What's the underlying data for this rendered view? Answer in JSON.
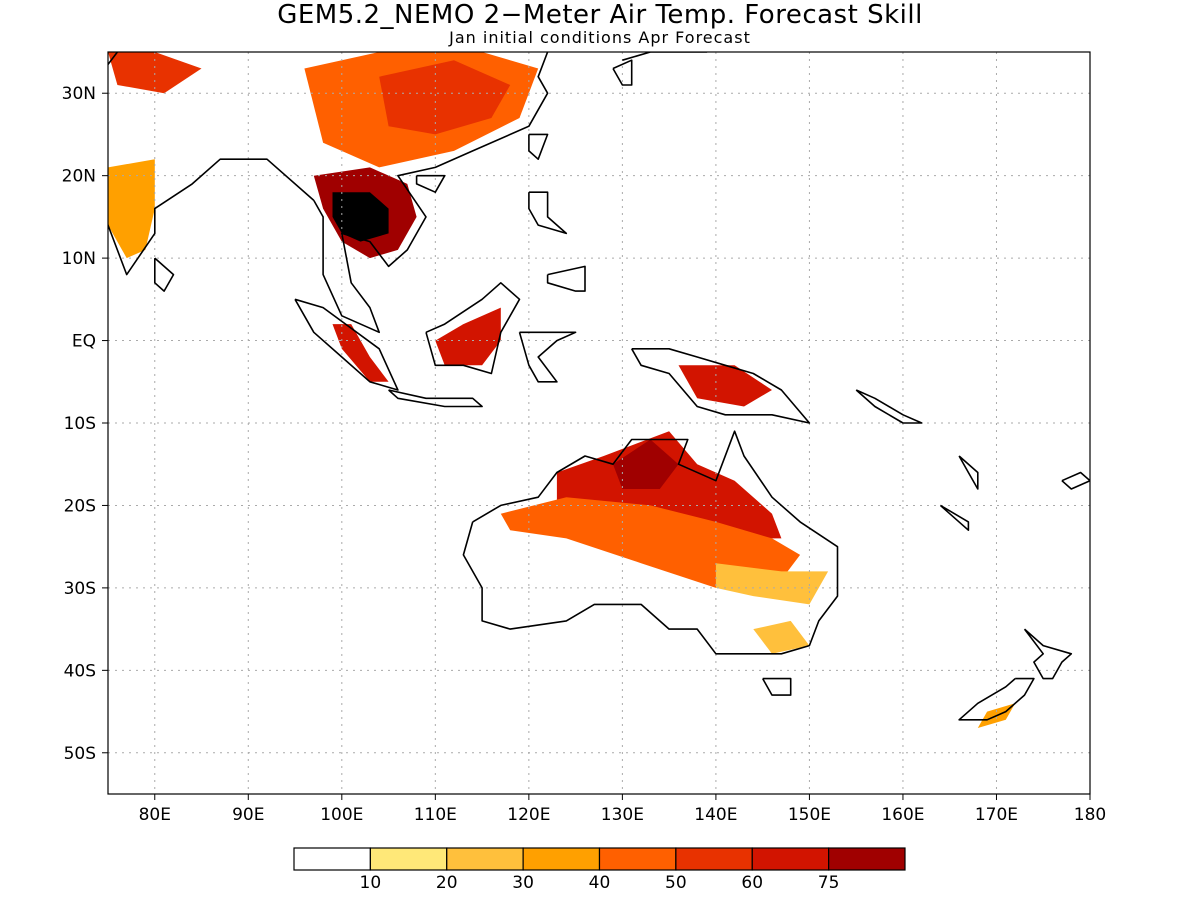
{
  "title": "GEM5.2_NEMO 2−Meter Air Temp. Forecast Skill",
  "subtitle": "Jan initial conditions  Apr Forecast",
  "map": {
    "lon_range": [
      75,
      180
    ],
    "lat_range": [
      -55,
      35
    ],
    "lon_ticks": [
      {
        "value": 80,
        "label": "80E"
      },
      {
        "value": 90,
        "label": "90E"
      },
      {
        "value": 100,
        "label": "100E"
      },
      {
        "value": 110,
        "label": "110E"
      },
      {
        "value": 120,
        "label": "120E"
      },
      {
        "value": 130,
        "label": "130E"
      },
      {
        "value": 140,
        "label": "140E"
      },
      {
        "value": 150,
        "label": "150E"
      },
      {
        "value": 160,
        "label": "160E"
      },
      {
        "value": 170,
        "label": "170E"
      },
      {
        "value": 180,
        "label": "180"
      }
    ],
    "lat_ticks": [
      {
        "value": 30,
        "label": "30N"
      },
      {
        "value": 20,
        "label": "20N"
      },
      {
        "value": 10,
        "label": "10N"
      },
      {
        "value": 0,
        "label": "EQ"
      },
      {
        "value": -10,
        "label": "10S"
      },
      {
        "value": -20,
        "label": "20S"
      },
      {
        "value": -30,
        "label": "30S"
      },
      {
        "value": -40,
        "label": "40S"
      },
      {
        "value": -50,
        "label": "50S"
      }
    ],
    "gridlines": true
  },
  "legend": {
    "colors": [
      "#ffffff",
      "#ffe878",
      "#ffc03c",
      "#ffa000",
      "#ff6000",
      "#e83200",
      "#d21400",
      "#a00000"
    ],
    "labels": [
      "10",
      "20",
      "30",
      "40",
      "50",
      "60",
      "75"
    ]
  },
  "skill_regions": [
    {
      "region": "Indochina",
      "level": 7,
      "polygon": [
        [
          97,
          20
        ],
        [
          103,
          21
        ],
        [
          107,
          19
        ],
        [
          108,
          15
        ],
        [
          106,
          11
        ],
        [
          103,
          10
        ],
        [
          100,
          12
        ],
        [
          98,
          16
        ]
      ]
    },
    {
      "region": "Indochina core",
      "level": 8,
      "polygon": [
        [
          99,
          18
        ],
        [
          103,
          18
        ],
        [
          105,
          16
        ],
        [
          105,
          13
        ],
        [
          102,
          12
        ],
        [
          100,
          13
        ],
        [
          99,
          15
        ]
      ]
    },
    {
      "region": "South China",
      "level": 4,
      "polygon": [
        [
          96,
          33
        ],
        [
          104,
          35
        ],
        [
          115,
          35
        ],
        [
          121,
          33
        ],
        [
          119,
          27
        ],
        [
          112,
          23
        ],
        [
          104,
          21
        ],
        [
          98,
          24
        ]
      ]
    },
    {
      "region": "South China inner",
      "level": 5,
      "polygon": [
        [
          104,
          32
        ],
        [
          112,
          34
        ],
        [
          118,
          31
        ],
        [
          116,
          27
        ],
        [
          110,
          25
        ],
        [
          105,
          26
        ]
      ]
    },
    {
      "region": "Northeast India",
      "level": 5,
      "polygon": [
        [
          75,
          35
        ],
        [
          80,
          35
        ],
        [
          85,
          33
        ],
        [
          81,
          30
        ],
        [
          76,
          31
        ]
      ]
    },
    {
      "region": "Central India",
      "level": 3,
      "polygon": [
        [
          75,
          21
        ],
        [
          80,
          22
        ],
        [
          80,
          16
        ],
        [
          79,
          11
        ],
        [
          77,
          10
        ],
        [
          75,
          14
        ]
      ]
    },
    {
      "region": "Sumatra",
      "level": 6,
      "polygon": [
        [
          99,
          2
        ],
        [
          101,
          2
        ],
        [
          103,
          -2
        ],
        [
          105,
          -5
        ],
        [
          103,
          -5
        ],
        [
          100,
          -1
        ]
      ]
    },
    {
      "region": "Borneo",
      "level": 6,
      "polygon": [
        [
          110,
          0
        ],
        [
          113,
          2
        ],
        [
          117,
          4
        ],
        [
          117,
          0
        ],
        [
          115,
          -3
        ],
        [
          111,
          -3
        ]
      ]
    },
    {
      "region": "New Guinea",
      "level": 6,
      "polygon": [
        [
          136,
          -3
        ],
        [
          142,
          -3
        ],
        [
          146,
          -6
        ],
        [
          143,
          -8
        ],
        [
          138,
          -7
        ]
      ]
    },
    {
      "region": "Northern Australia",
      "level": 6,
      "polygon": [
        [
          123,
          -16
        ],
        [
          128,
          -14
        ],
        [
          135,
          -11
        ],
        [
          138,
          -15
        ],
        [
          142,
          -17
        ],
        [
          146,
          -21
        ],
        [
          147,
          -24
        ],
        [
          141,
          -24
        ],
        [
          134,
          -22
        ],
        [
          126,
          -22
        ],
        [
          123,
          -20
        ]
      ]
    },
    {
      "region": "Top End",
      "level": 7,
      "polygon": [
        [
          129,
          -15
        ],
        [
          133,
          -12
        ],
        [
          136,
          -15
        ],
        [
          134,
          -18
        ],
        [
          130,
          -18
        ]
      ]
    },
    {
      "region": "Central Australia",
      "level": 4,
      "polygon": [
        [
          117,
          -21
        ],
        [
          124,
          -19
        ],
        [
          133,
          -20
        ],
        [
          140,
          -22
        ],
        [
          146,
          -24
        ],
        [
          149,
          -26
        ],
        [
          147,
          -29
        ],
        [
          140,
          -30
        ],
        [
          132,
          -27
        ],
        [
          124,
          -24
        ],
        [
          118,
          -23
        ]
      ]
    },
    {
      "region": "Southern Australia",
      "level": 2,
      "polygon": [
        [
          140,
          -27
        ],
        [
          147,
          -28
        ],
        [
          152,
          -28
        ],
        [
          150,
          -32
        ],
        [
          144,
          -31
        ],
        [
          140,
          -30
        ]
      ]
    },
    {
      "region": "Southeast Australia",
      "level": 2,
      "polygon": [
        [
          144,
          -35
        ],
        [
          148,
          -34
        ],
        [
          150,
          -37
        ],
        [
          146,
          -38
        ]
      ]
    },
    {
      "region": "New Zealand",
      "level": 3,
      "polygon": [
        [
          169,
          -45
        ],
        [
          172,
          -44
        ],
        [
          171,
          -46
        ],
        [
          168,
          -47
        ]
      ]
    }
  ],
  "coastlines": [
    {
      "name": "India",
      "points": [
        [
          76,
          35
        ],
        [
          72,
          29
        ],
        [
          69,
          23
        ],
        [
          73,
          20
        ],
        [
          77,
          8
        ],
        [
          80,
          13
        ],
        [
          80,
          16
        ],
        [
          84,
          19
        ],
        [
          87,
          22
        ],
        [
          89,
          22
        ],
        [
          92,
          22
        ],
        [
          97,
          17
        ]
      ]
    },
    {
      "name": "Southeast Asia",
      "points": [
        [
          97,
          17
        ],
        [
          98,
          15
        ],
        [
          98,
          8
        ],
        [
          100,
          3
        ],
        [
          104,
          1
        ],
        [
          103,
          4
        ],
        [
          101,
          7
        ],
        [
          100,
          13
        ],
        [
          103,
          12
        ],
        [
          105,
          9
        ],
        [
          107,
          11
        ],
        [
          109,
          15
        ],
        [
          106,
          20
        ],
        [
          110,
          21
        ],
        [
          114,
          23
        ],
        [
          120,
          26
        ],
        [
          122,
          30
        ],
        [
          121,
          32
        ],
        [
          122,
          35
        ]
      ]
    },
    {
      "name": "Sumatra",
      "points": [
        [
          95,
          5
        ],
        [
          98,
          4
        ],
        [
          104,
          -1
        ],
        [
          106,
          -6
        ],
        [
          103,
          -5
        ],
        [
          100,
          -2
        ],
        [
          97,
          1
        ],
        [
          95,
          5
        ]
      ]
    },
    {
      "name": "Java",
      "points": [
        [
          105,
          -6
        ],
        [
          109,
          -7
        ],
        [
          114,
          -7
        ],
        [
          115,
          -8
        ],
        [
          111,
          -8
        ],
        [
          106,
          -7
        ],
        [
          105,
          -6
        ]
      ]
    },
    {
      "name": "Borneo",
      "points": [
        [
          109,
          1
        ],
        [
          111,
          2
        ],
        [
          115,
          5
        ],
        [
          117,
          7
        ],
        [
          119,
          5
        ],
        [
          117,
          1
        ],
        [
          116,
          -4
        ],
        [
          113,
          -3
        ],
        [
          110,
          -3
        ],
        [
          109,
          1
        ]
      ]
    },
    {
      "name": "Sulawesi",
      "points": [
        [
          119,
          1
        ],
        [
          121,
          1
        ],
        [
          125,
          1
        ],
        [
          123,
          0
        ],
        [
          121,
          -2
        ],
        [
          123,
          -5
        ],
        [
          121,
          -5
        ],
        [
          120,
          -3
        ],
        [
          119,
          1
        ]
      ]
    },
    {
      "name": "Philippines Luzon",
      "points": [
        [
          120,
          18
        ],
        [
          122,
          18
        ],
        [
          122,
          15
        ],
        [
          124,
          13
        ],
        [
          121,
          14
        ],
        [
          120,
          16
        ],
        [
          120,
          18
        ]
      ]
    },
    {
      "name": "Philippines Mindanao",
      "points": [
        [
          122,
          8
        ],
        [
          126,
          9
        ],
        [
          126,
          6
        ],
        [
          125,
          6
        ],
        [
          122,
          7
        ],
        [
          122,
          8
        ]
      ]
    },
    {
      "name": "Taiwan",
      "points": [
        [
          120,
          25
        ],
        [
          122,
          25
        ],
        [
          121,
          22
        ],
        [
          120,
          23
        ],
        [
          120,
          25
        ]
      ]
    },
    {
      "name": "Hainan",
      "points": [
        [
          108,
          20
        ],
        [
          111,
          20
        ],
        [
          110,
          18
        ],
        [
          108,
          19
        ],
        [
          108,
          20
        ]
      ]
    },
    {
      "name": "Sri Lanka",
      "points": [
        [
          80,
          10
        ],
        [
          82,
          8
        ],
        [
          81,
          6
        ],
        [
          80,
          7
        ],
        [
          80,
          10
        ]
      ]
    },
    {
      "name": "New Guinea",
      "points": [
        [
          131,
          -1
        ],
        [
          135,
          -1
        ],
        [
          138,
          -2
        ],
        [
          141,
          -3
        ],
        [
          144,
          -4
        ],
        [
          147,
          -6
        ],
        [
          150,
          -10
        ],
        [
          146,
          -9
        ],
        [
          143,
          -9
        ],
        [
          141,
          -9
        ],
        [
          138,
          -8
        ],
        [
          135,
          -4
        ],
        [
          132,
          -3
        ],
        [
          131,
          -1
        ]
      ]
    },
    {
      "name": "Australia",
      "points": [
        [
          114,
          -22
        ],
        [
          117,
          -20
        ],
        [
          121,
          -19
        ],
        [
          123,
          -16
        ],
        [
          126,
          -14
        ],
        [
          129,
          -15
        ],
        [
          131,
          -12
        ],
        [
          137,
          -12
        ],
        [
          136,
          -15
        ],
        [
          140,
          -17
        ],
        [
          142,
          -11
        ],
        [
          143,
          -14
        ],
        [
          146,
          -19
        ],
        [
          149,
          -22
        ],
        [
          153,
          -25
        ],
        [
          153,
          -31
        ],
        [
          151,
          -34
        ],
        [
          150,
          -37
        ],
        [
          147,
          -38
        ],
        [
          144,
          -38
        ],
        [
          140,
          -38
        ],
        [
          138,
          -35
        ],
        [
          135,
          -35
        ],
        [
          132,
          -32
        ],
        [
          127,
          -32
        ],
        [
          124,
          -34
        ],
        [
          118,
          -35
        ],
        [
          115,
          -34
        ],
        [
          115,
          -30
        ],
        [
          113,
          -26
        ],
        [
          114,
          -22
        ]
      ]
    },
    {
      "name": "Tasmania",
      "points": [
        [
          145,
          -41
        ],
        [
          148,
          -41
        ],
        [
          148,
          -43
        ],
        [
          146,
          -43
        ],
        [
          145,
          -41
        ]
      ]
    },
    {
      "name": "NZ North Island",
      "points": [
        [
          173,
          -35
        ],
        [
          175,
          -37
        ],
        [
          178,
          -38
        ],
        [
          177,
          -39
        ],
        [
          176,
          -41
        ],
        [
          175,
          -41
        ],
        [
          174,
          -39
        ],
        [
          175,
          -38
        ],
        [
          173,
          -35
        ]
      ]
    },
    {
      "name": "NZ South Island",
      "points": [
        [
          172,
          -41
        ],
        [
          174,
          -41
        ],
        [
          173,
          -43
        ],
        [
          171,
          -45
        ],
        [
          169,
          -46
        ],
        [
          166,
          -46
        ],
        [
          168,
          -44
        ],
        [
          171,
          -42
        ],
        [
          172,
          -41
        ]
      ]
    },
    {
      "name": "Japan Kyushu",
      "points": [
        [
          129,
          33
        ],
        [
          131,
          34
        ],
        [
          131,
          31
        ],
        [
          130,
          31
        ],
        [
          129,
          33
        ]
      ]
    },
    {
      "name": "Japan Honshu",
      "points": [
        [
          130,
          34
        ],
        [
          133,
          35
        ],
        [
          136,
          35
        ],
        [
          139,
          35
        ],
        [
          140,
          36
        ]
      ]
    },
    {
      "name": "Solomon Islands",
      "points": [
        [
          155,
          -6
        ],
        [
          157,
          -7
        ],
        [
          160,
          -9
        ],
        [
          162,
          -10
        ],
        [
          160,
          -10
        ],
        [
          157,
          -8
        ],
        [
          155,
          -6
        ]
      ]
    },
    {
      "name": "New Caledonia",
      "points": [
        [
          164,
          -20
        ],
        [
          167,
          -22
        ],
        [
          167,
          -23
        ],
        [
          165,
          -21
        ],
        [
          164,
          -20
        ]
      ]
    },
    {
      "name": "Vanuatu",
      "points": [
        [
          166,
          -14
        ],
        [
          168,
          -16
        ],
        [
          168,
          -18
        ],
        [
          167,
          -16
        ],
        [
          166,
          -14
        ]
      ]
    },
    {
      "name": "Fiji",
      "points": [
        [
          177,
          -17
        ],
        [
          179,
          -16
        ],
        [
          180,
          -17
        ],
        [
          178,
          -18
        ],
        [
          177,
          -17
        ]
      ]
    }
  ]
}
